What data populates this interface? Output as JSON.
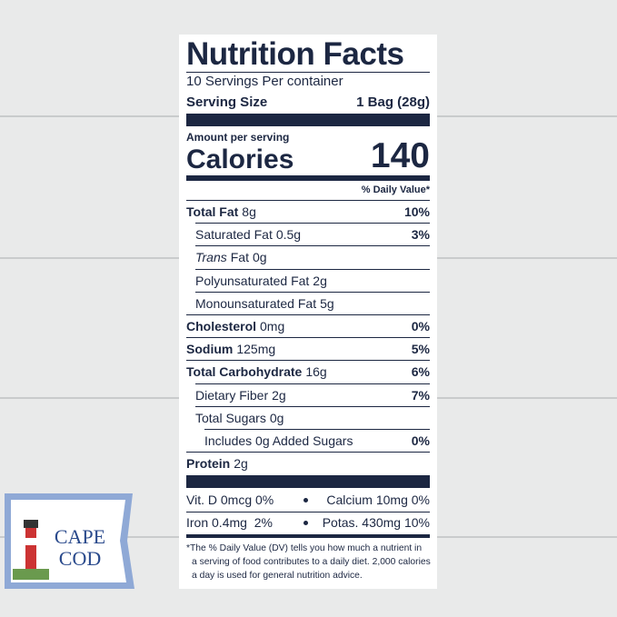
{
  "label": {
    "title": "Nutrition Facts",
    "servings": "10 Servings Per container",
    "serving_size_label": "Serving Size",
    "serving_size_value": "1 Bag (28g)",
    "amount_per_serving": "Amount per serving",
    "calories_label": "Calories",
    "calories_value": "140",
    "dv_header": "% Daily Value*",
    "rows": [
      {
        "name": "Total Fat",
        "amount": "8g",
        "dv": "10%",
        "bold": true,
        "indent": 0
      },
      {
        "name": "Saturated Fat",
        "amount": "0.5g",
        "dv": "3%",
        "bold": false,
        "indent": 1
      },
      {
        "name_italic": "Trans",
        "name": "Fat",
        "amount": "0g",
        "bold": false,
        "indent": 1
      },
      {
        "name": "Polyunsaturated Fat",
        "amount": "2g",
        "bold": false,
        "indent": 1
      },
      {
        "name": "Monounsaturated Fat",
        "amount": "5g",
        "bold": false,
        "indent": 1
      },
      {
        "name": "Cholesterol",
        "amount": "0mg",
        "dv": "0%",
        "bold": true,
        "indent": 0
      },
      {
        "name": "Sodium",
        "amount": "125mg",
        "dv": "5%",
        "bold": true,
        "indent": 0
      },
      {
        "name": "Total Carbohydrate",
        "amount": "16g",
        "dv": "6%",
        "bold": true,
        "indent": 0
      },
      {
        "name": "Dietary Fiber",
        "amount": "2g",
        "dv": "7%",
        "bold": false,
        "indent": 1
      },
      {
        "name": "Total Sugars",
        "amount": "0g",
        "bold": false,
        "indent": 1
      },
      {
        "name": "Includes 0g Added Sugars",
        "dv": "0%",
        "bold": false,
        "indent": 2
      },
      {
        "name": "Protein",
        "amount": "2g",
        "bold": true,
        "indent": 0
      }
    ],
    "vitamins": [
      [
        "Vit. D 0mcg 0%",
        "Calcium 10mg 0%"
      ],
      [
        "Iron 0.4mg  2%",
        "Potas. 430mg 10%"
      ]
    ],
    "footnote": [
      "*The % Daily Value (DV) tells you how much a nutrient in",
      "a serving of food contributes to a daily diet. 2,000 calories",
      "a day is used for general nutrition advice."
    ]
  },
  "logo": {
    "lines": [
      "CAPE",
      "COD"
    ]
  }
}
